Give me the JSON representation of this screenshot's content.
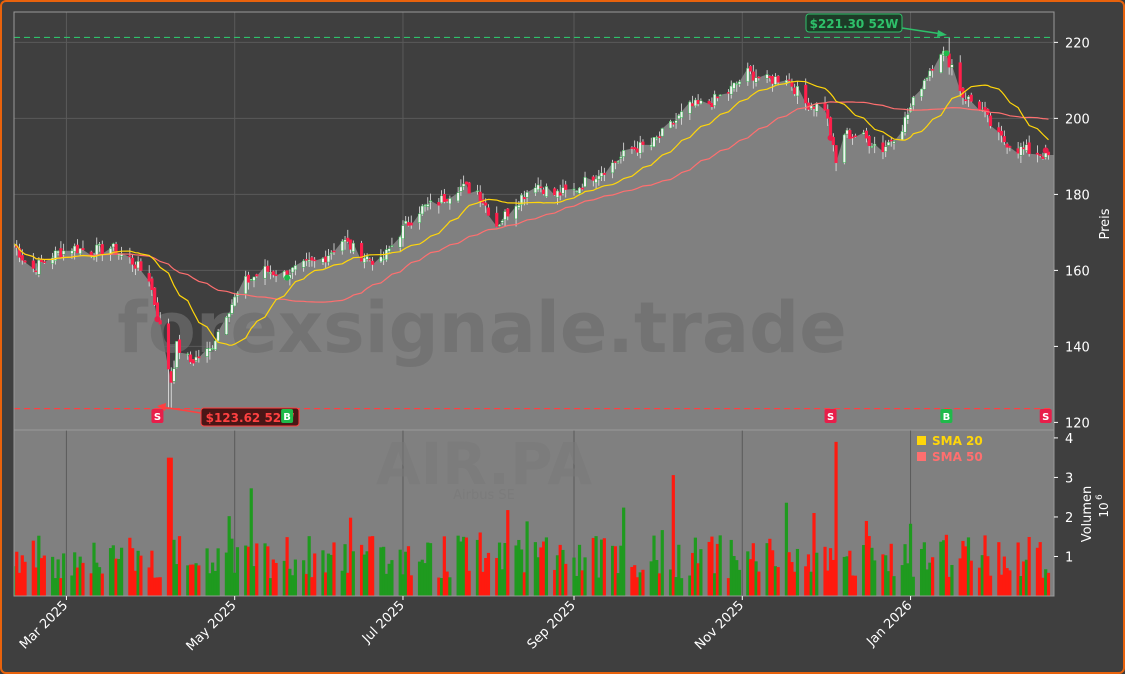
{
  "colors": {
    "background": "#3f3f3f",
    "frame_border": "#e8620c",
    "plot_background": "#808080",
    "area_fill": "#8a8a8a",
    "bull": "#2db24a",
    "bear": "#ff1f4b",
    "sma20": "#ffd60a",
    "sma50": "#ff6f6f",
    "high_line": "#2ec06a",
    "low_line": "#ff4040",
    "volume_up": "#1f9a1f",
    "volume_down": "#ff1a0f",
    "watermark": "#6e6e6e",
    "text": "#ffffff"
  },
  "watermark": {
    "site": "forexsignale.trade",
    "ticker": "AIR.PA",
    "company": "Airbus SE"
  },
  "chart_data": {
    "type": "candlestick",
    "price_axis": {
      "label": "Preis",
      "ticks": [
        120,
        140,
        160,
        180,
        200,
        220
      ],
      "ylim": [
        118,
        228
      ]
    },
    "volume_axis": {
      "label": "Volumen",
      "multiplier_label": "10",
      "multiplier_exp": "6",
      "ticks": [
        "1",
        "2",
        "3",
        "4"
      ],
      "ylim": [
        0,
        4.2
      ]
    },
    "x_ticks": [
      {
        "date": "2025-03-01",
        "label": "Mar 2025"
      },
      {
        "date": "2025-05-01",
        "label": "May 2025"
      },
      {
        "date": "2025-07-01",
        "label": "Jul 2025"
      },
      {
        "date": "2025-09-01",
        "label": "Sep 2025"
      },
      {
        "date": "2025-11-01",
        "label": "Nov 2025"
      },
      {
        "date": "2026-01-01",
        "label": "Jan 2026"
      }
    ],
    "date_range": [
      "2025-02-10",
      "2026-02-22"
    ],
    "grid": true,
    "price_anchors": [
      [
        "2025-02-10",
        167
      ],
      [
        "2025-02-16",
        160
      ],
      [
        "2025-02-24",
        164
      ],
      [
        "2025-03-03",
        166
      ],
      [
        "2025-03-10",
        165
      ],
      [
        "2025-03-17",
        166
      ],
      [
        "2025-03-24",
        163
      ],
      [
        "2025-03-31",
        158
      ],
      [
        "2025-04-04",
        145
      ],
      [
        "2025-04-08",
        131
      ],
      [
        "2025-04-10",
        140
      ],
      [
        "2025-04-15",
        136
      ],
      [
        "2025-04-22",
        139
      ],
      [
        "2025-04-28",
        149
      ],
      [
        "2025-05-05",
        157
      ],
      [
        "2025-05-12",
        160
      ],
      [
        "2025-05-19",
        159
      ],
      [
        "2025-05-26",
        161
      ],
      [
        "2025-06-02",
        163
      ],
      [
        "2025-06-09",
        168
      ],
      [
        "2025-06-16",
        164
      ],
      [
        "2025-06-23",
        162
      ],
      [
        "2025-06-30",
        170
      ],
      [
        "2025-07-07",
        176
      ],
      [
        "2025-07-14",
        178
      ],
      [
        "2025-07-21",
        182
      ],
      [
        "2025-07-28",
        181
      ],
      [
        "2025-08-04",
        172
      ],
      [
        "2025-08-11",
        178
      ],
      [
        "2025-08-18",
        183
      ],
      [
        "2025-08-25",
        180
      ],
      [
        "2025-09-01",
        181
      ],
      [
        "2025-09-08",
        185
      ],
      [
        "2025-09-15",
        188
      ],
      [
        "2025-09-22",
        192
      ],
      [
        "2025-09-29",
        193
      ],
      [
        "2025-10-06",
        198
      ],
      [
        "2025-10-13",
        203
      ],
      [
        "2025-10-20",
        204
      ],
      [
        "2025-10-27",
        207
      ],
      [
        "2025-11-03",
        212
      ],
      [
        "2025-11-10",
        210
      ],
      [
        "2025-11-17",
        211
      ],
      [
        "2025-11-24",
        204
      ],
      [
        "2025-12-01",
        203
      ],
      [
        "2025-12-05",
        188
      ],
      [
        "2025-12-08",
        196
      ],
      [
        "2025-12-15",
        195
      ],
      [
        "2025-12-22",
        192
      ],
      [
        "2025-12-29",
        198
      ],
      [
        "2026-01-05",
        209
      ],
      [
        "2026-01-12",
        218
      ],
      [
        "2026-01-16",
        214
      ],
      [
        "2026-01-20",
        206
      ],
      [
        "2026-01-26",
        203
      ],
      [
        "2026-02-02",
        195
      ],
      [
        "2026-02-09",
        192
      ],
      [
        "2026-02-16",
        191
      ],
      [
        "2026-02-20",
        190
      ]
    ],
    "series": [
      {
        "name": "SMA 20",
        "style": "line"
      },
      {
        "name": "SMA 50",
        "style": "line"
      }
    ],
    "high_52w": {
      "value": 221.3,
      "label": "$221.30 52W"
    },
    "low_52w": {
      "value": 123.62,
      "label": "$123.62 52W"
    },
    "signals": [
      {
        "type": "S",
        "date": "2025-04-03"
      },
      {
        "type": "B",
        "date": "2025-05-20"
      },
      {
        "type": "S",
        "date": "2025-12-03"
      },
      {
        "type": "B",
        "date": "2026-01-14"
      },
      {
        "type": "S",
        "date": "2026-02-19"
      }
    ]
  }
}
